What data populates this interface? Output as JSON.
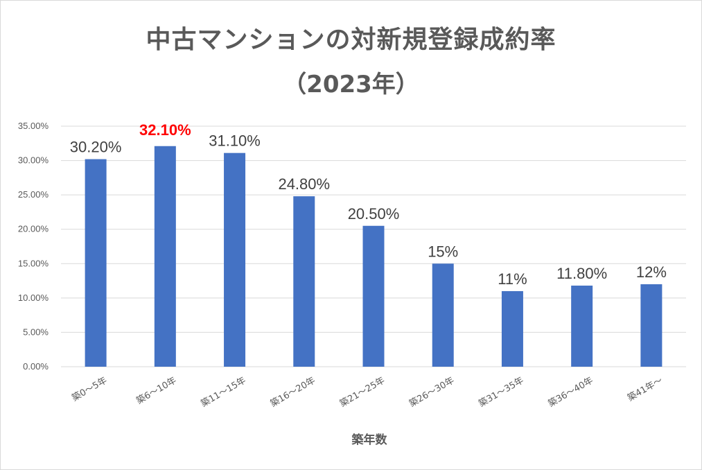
{
  "chart_data": {
    "type": "bar",
    "title": "中古マンションの対新規登録成約率",
    "subtitle": "（2023年）",
    "xlabel": "築年数",
    "ylabel": "",
    "ylim": [
      0,
      35
    ],
    "yticks": [
      "0.00%",
      "5.00%",
      "10.00%",
      "15.00%",
      "20.00%",
      "25.00%",
      "30.00%",
      "35.00%"
    ],
    "grid": true,
    "legend": "none",
    "categories": [
      "築0～5年",
      "築6～10年",
      "築11～15年",
      "築16～20年",
      "築21～25年",
      "築26～30年",
      "築31～35年",
      "築36～40年",
      "築41年～"
    ],
    "values": [
      30.2,
      32.1,
      31.1,
      24.8,
      20.5,
      15,
      11,
      11.8,
      12
    ],
    "data_labels": [
      "30.20%",
      "32.10%",
      "31.10%",
      "24.80%",
      "20.50%",
      "15%",
      "11%",
      "11.80%",
      "12%"
    ],
    "highlight_index": 1,
    "colors": {
      "bar": "#4472c4",
      "highlight_label": "#ff0000",
      "grid": "#d9d9d9"
    }
  }
}
